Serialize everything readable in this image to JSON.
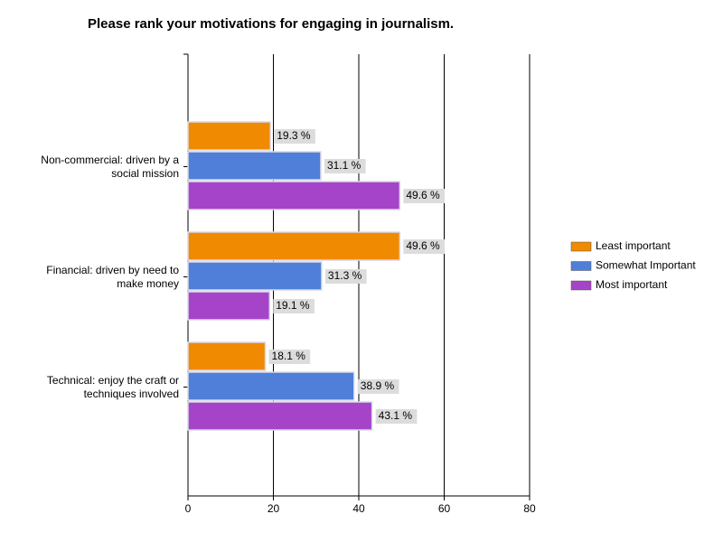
{
  "chart_data": {
    "type": "barh",
    "title": "Please rank your motivations for engaging in journalism.",
    "categories": [
      "Non-commercial: driven by a social mission",
      "Financial: driven by need to make money",
      "Technical: enjoy the craft or techniques involved"
    ],
    "series": [
      {
        "name": "Least important",
        "color": "#f08a00",
        "values": [
          19.3,
          49.6,
          18.1
        ],
        "value_labels": [
          "19.3 %",
          "49.6 %",
          "18.1 %"
        ]
      },
      {
        "name": "Somewhat Important",
        "color": "#4f7fd8",
        "values": [
          31.1,
          31.3,
          38.9
        ],
        "value_labels": [
          "31.1 %",
          "31.3 %",
          "38.9 %"
        ]
      },
      {
        "name": "Most important",
        "color": "#a544c8",
        "values": [
          49.6,
          19.1,
          43.1
        ],
        "value_labels": [
          "49.6 %",
          "19.1 %",
          "43.1 %"
        ]
      }
    ],
    "xlim": [
      0,
      80
    ],
    "xticks": [
      0,
      20,
      40,
      60,
      80
    ],
    "grid": true,
    "legend": "right"
  }
}
